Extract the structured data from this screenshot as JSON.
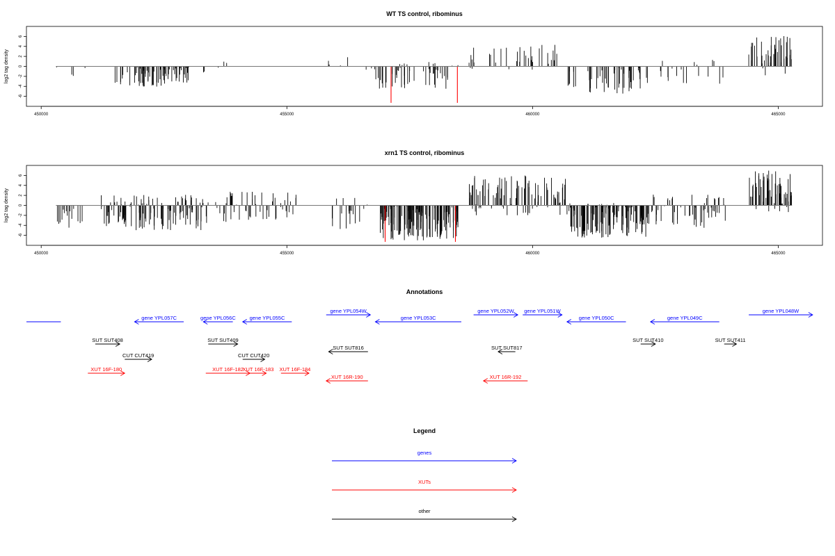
{
  "chart_data": [
    {
      "type": "bar",
      "title": "WT TS control, ribominus",
      "xlabel": "",
      "ylabel": "log2 tag density",
      "xlim": [
        449700,
        465900
      ],
      "ylim": [
        -8,
        8
      ],
      "x_ticks": [
        "450000",
        "455000",
        "460000",
        "465000"
      ],
      "y_ticks": [
        "-6",
        "-4",
        "-2",
        "0",
        "2",
        "4",
        "6"
      ],
      "grid": false,
      "highlight_positions": [
        457120,
        458470
      ],
      "highlight_values": [
        -7.3,
        -7.3
      ],
      "region_profile": [
        {
          "from": 450300,
          "to": 450950,
          "min": -3.0,
          "max": 0,
          "density": 0.02
        },
        {
          "from": 451480,
          "to": 453000,
          "min": -4.2,
          "max": 0,
          "density": 0.18
        },
        {
          "from": 453200,
          "to": 454100,
          "min": -1.8,
          "max": 1.5,
          "density": 0.02
        },
        {
          "from": 455800,
          "to": 456300,
          "min": -2.0,
          "max": 2.0,
          "density": 0.015
        },
        {
          "from": 456600,
          "to": 458500,
          "min": -4.5,
          "max": 1.0,
          "density": 0.12
        },
        {
          "from": 458700,
          "to": 460500,
          "min": -1.0,
          "max": 4.5,
          "density": 0.08
        },
        {
          "from": 460700,
          "to": 462200,
          "min": -5.5,
          "max": 0,
          "density": 0.14
        },
        {
          "from": 462300,
          "to": 463900,
          "min": -3.5,
          "max": 1.5,
          "density": 0.05
        },
        {
          "from": 464400,
          "to": 465280,
          "min": -2.0,
          "max": 6.5,
          "density": 0.22
        }
      ]
    },
    {
      "type": "bar",
      "title": "xrn1 TS control, ribominus",
      "xlabel": "",
      "ylabel": "log2 tag density",
      "xlim": [
        449700,
        465900
      ],
      "ylim": [
        -8,
        8
      ],
      "x_ticks": [
        "450000",
        "455000",
        "460000",
        "465000"
      ],
      "y_ticks": [
        "-6",
        "-4",
        "-2",
        "0",
        "2",
        "4",
        "6"
      ],
      "grid": false,
      "highlight_positions": [
        457000,
        458430
      ],
      "highlight_values": [
        -7.3,
        -7.3
      ],
      "region_profile": [
        {
          "from": 450250,
          "to": 451000,
          "min": -4.5,
          "max": 0,
          "density": 0.08
        },
        {
          "from": 451200,
          "to": 453400,
          "min": -5.0,
          "max": 2.2,
          "density": 0.25
        },
        {
          "from": 453400,
          "to": 455200,
          "min": -3.5,
          "max": 3.0,
          "density": 0.12
        },
        {
          "from": 455800,
          "to": 456700,
          "min": -5.0,
          "max": 1.5,
          "density": 0.08
        },
        {
          "from": 456900,
          "to": 458500,
          "min": -7.0,
          "max": 0,
          "density": 0.35
        },
        {
          "from": 458700,
          "to": 460700,
          "min": -2.0,
          "max": 6.0,
          "density": 0.2
        },
        {
          "from": 460700,
          "to": 462400,
          "min": -6.5,
          "max": 0.5,
          "density": 0.3
        },
        {
          "from": 462400,
          "to": 464000,
          "min": -4.5,
          "max": 2.5,
          "density": 0.15
        },
        {
          "from": 464400,
          "to": 465280,
          "min": -1.5,
          "max": 7.0,
          "density": 0.3
        }
      ]
    }
  ],
  "annotations": {
    "title": "Annotations",
    "items": [
      {
        "label": "",
        "color": "#0000ff",
        "start": 449700,
        "end": 450400,
        "row": 0,
        "dir": "none"
      },
      {
        "label": "gene YPL057C",
        "color": "#0000ff",
        "start": 451900,
        "end": 452900,
        "row": 0,
        "dir": "left"
      },
      {
        "label": "gene YPL056C",
        "color": "#0000ff",
        "start": 453300,
        "end": 453900,
        "row": 0,
        "dir": "left"
      },
      {
        "label": "gene YPL055C",
        "color": "#0000ff",
        "start": 454100,
        "end": 455100,
        "row": 0,
        "dir": "left"
      },
      {
        "label": "gene YPL054W",
        "color": "#0000ff",
        "start": 455800,
        "end": 456700,
        "row": -1,
        "dir": "right"
      },
      {
        "label": "gene YPL053C",
        "color": "#0000ff",
        "start": 456800,
        "end": 458550,
        "row": 0,
        "dir": "left"
      },
      {
        "label": "gene YPL052W",
        "color": "#0000ff",
        "start": 458800,
        "end": 459700,
        "row": -1,
        "dir": "right"
      },
      {
        "label": "gene YPL051W",
        "color": "#0000ff",
        "start": 459800,
        "end": 460600,
        "row": -1,
        "dir": "right"
      },
      {
        "label": "gene YPL050C",
        "color": "#0000ff",
        "start": 460700,
        "end": 461900,
        "row": 0,
        "dir": "left"
      },
      {
        "label": "gene YPL049C",
        "color": "#0000ff",
        "start": 462400,
        "end": 463800,
        "row": 0,
        "dir": "left"
      },
      {
        "label": "gene YPL048W",
        "color": "#0000ff",
        "start": 464400,
        "end": 465700,
        "row": -1,
        "dir": "right"
      },
      {
        "label": "SUT SUT408",
        "color": "#000000",
        "start": 451100,
        "end": 451600,
        "row": 1,
        "dir": "right"
      },
      {
        "label": "SUT SUT409",
        "color": "#000000",
        "start": 453400,
        "end": 454000,
        "row": 1,
        "dir": "right"
      },
      {
        "label": "SUT SUT410",
        "color": "#000000",
        "start": 462200,
        "end": 462500,
        "row": 1,
        "dir": "right"
      },
      {
        "label": "SUT SUT411",
        "color": "#000000",
        "start": 463900,
        "end": 464150,
        "row": 1,
        "dir": "right"
      },
      {
        "label": "SUT SUT816",
        "color": "#000000",
        "start": 455850,
        "end": 456650,
        "row": 2,
        "dir": "left"
      },
      {
        "label": "SUT SUT817",
        "color": "#000000",
        "start": 459300,
        "end": 459650,
        "row": 2,
        "dir": "left"
      },
      {
        "label": "CUT CUT419",
        "color": "#000000",
        "start": 451700,
        "end": 452250,
        "row": 3,
        "dir": "right"
      },
      {
        "label": "CUT CUT420",
        "color": "#000000",
        "start": 454100,
        "end": 454550,
        "row": 3,
        "dir": "right"
      },
      {
        "label": "XUT 16F-180",
        "color": "#ff0000",
        "start": 450950,
        "end": 451700,
        "row": 4,
        "dir": "right"
      },
      {
        "label": "XUT 16F-182",
        "color": "#ff0000",
        "start": 453350,
        "end": 454250,
        "row": 4,
        "dir": "right"
      },
      {
        "label": "XUT 16F-183",
        "color": "#ff0000",
        "start": 454250,
        "end": 454580,
        "row": 4,
        "dir": "right"
      },
      {
        "label": "XUT 16F-184",
        "color": "#ff0000",
        "start": 454880,
        "end": 455450,
        "row": 4,
        "dir": "right"
      },
      {
        "label": "XUT 16R-190",
        "color": "#ff0000",
        "start": 455800,
        "end": 456650,
        "row": 5,
        "dir": "left"
      },
      {
        "label": "XUT 16R-192",
        "color": "#ff0000",
        "start": 459000,
        "end": 459900,
        "row": 5,
        "dir": "left"
      }
    ]
  },
  "legend": {
    "title": "Legend",
    "items": [
      {
        "label": "genes",
        "color": "#0000ff"
      },
      {
        "label": "XUTs",
        "color": "#ff0000"
      },
      {
        "label": "other",
        "color": "#000000"
      }
    ]
  }
}
